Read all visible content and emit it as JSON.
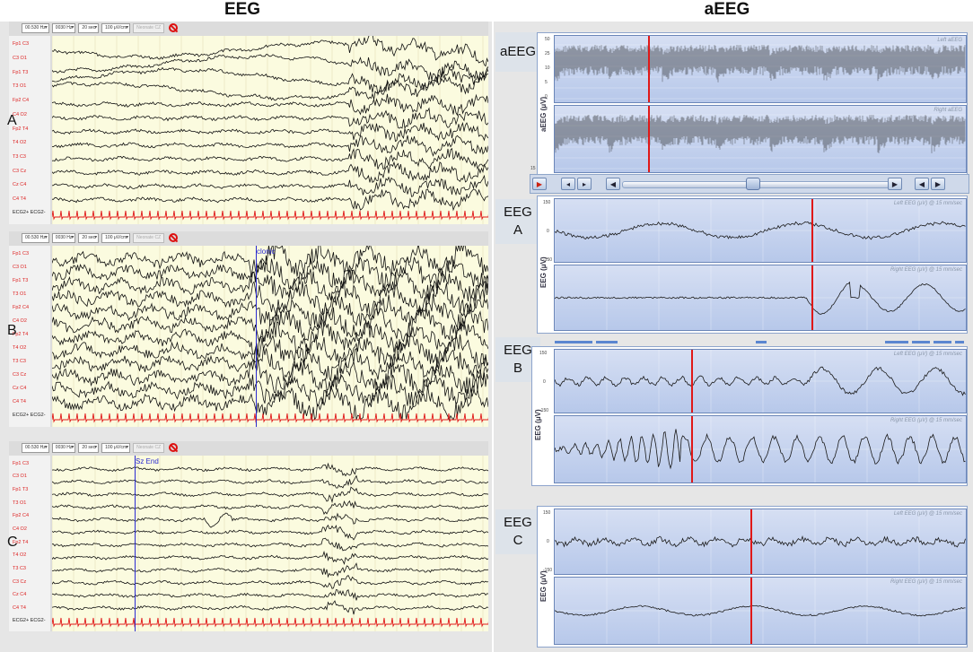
{
  "headings": {
    "left": "EEG",
    "right": "aEEG"
  },
  "toolbar": {
    "filter_low": "00.530 Hz",
    "filter_high": "0030 Hz",
    "timebase": "20 sec",
    "sensitivity": "100 μV/cm",
    "reference": "Neonate CZ"
  },
  "channels": [
    "Fp1 C3",
    "C3 O1",
    "Fp1 T3",
    "T3 O1",
    "Fp2 C4",
    "C4 O2",
    "Fp2 T4",
    "T4 O2",
    "T3 C3",
    "C3 Cz",
    "Cz C4",
    "C4 T4"
  ],
  "ecg_label": "ECG2+ ECG2-",
  "eeg_panels": [
    {
      "letter": "A",
      "marker": ""
    },
    {
      "letter": "B",
      "marker": "clonic"
    },
    {
      "letter": "C",
      "marker": "Sz End"
    }
  ],
  "aeeg_section": {
    "label": "aEEG",
    "left_title": "Left aEEG",
    "right_title": "Right aEEG",
    "axis_label": "aEEG (μV)",
    "ticks": [
      "50",
      "25",
      "10",
      "5",
      "0"
    ],
    "bottom_tick": "15"
  },
  "eeg_views": [
    {
      "label_line1": "EEG",
      "label_line2": "A",
      "left_title": "Left EEG (μV) @ 15 mm/sec",
      "right_title": "Right EEG (μV) @ 15 mm/sec",
      "axis_label": "EEG (μV)",
      "tick_top": "150",
      "tick_mid": "0",
      "tick_bot": "-150"
    },
    {
      "label_line1": "EEG",
      "label_line2": "B",
      "left_title": "Left EEG (μV) @ 15 mm/sec",
      "right_title": "Right EEG (μV) @ 15 mm/sec",
      "axis_label": "EEG (μV)",
      "tick_top": "150",
      "tick_mid": "0",
      "tick_bot": "-150"
    },
    {
      "label_line1": "EEG",
      "label_line2": "C",
      "left_title": "Left EEG (μV) @ 15 mm/sec",
      "right_title": "Right EEG (μV) @ 15 mm/sec",
      "axis_label": "EEG (μV)",
      "tick_top": "150",
      "tick_mid": "0",
      "tick_bot": "-150"
    }
  ],
  "colors": {
    "trace_bg": "#fbfbdf",
    "ecg": "#e01818",
    "cursor_red": "#e01818",
    "cursor_blue": "#2a2ad0",
    "plot_bg": "#c4d2ee"
  }
}
